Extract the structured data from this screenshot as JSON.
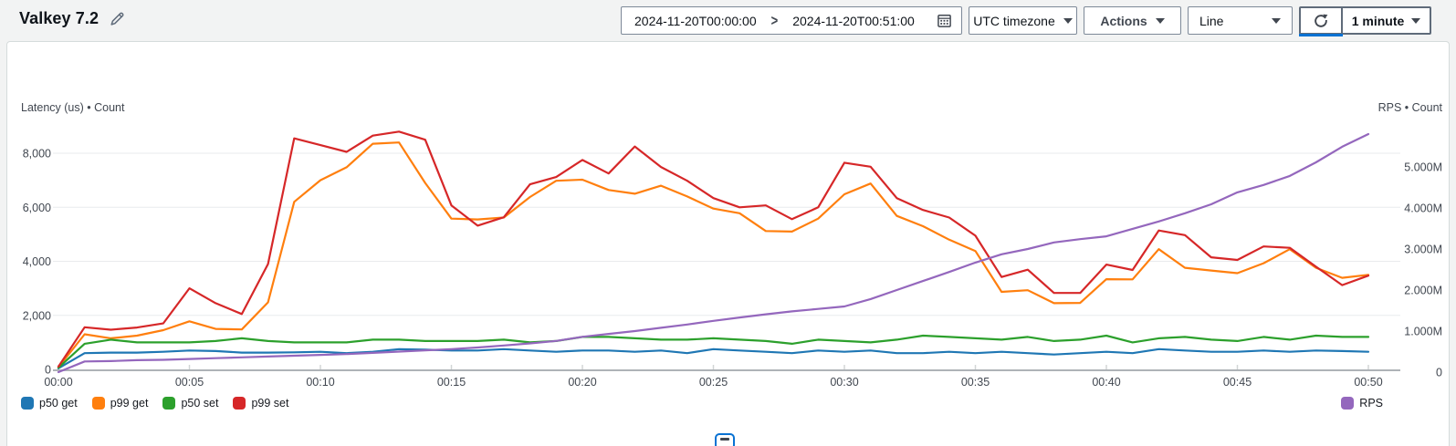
{
  "header": {
    "title": "Valkey 7.2",
    "date_range": {
      "start": "2024-11-20T00:00:00",
      "separator": ">",
      "end": "2024-11-20T00:51:00"
    },
    "timezone_dropdown_label": "UTC timezone",
    "actions_button_label": "Actions",
    "chart_type_selected": "Line",
    "refresh_interval_label": "1 minute"
  },
  "accent_color": "#0972d3",
  "chart_data": {
    "type": "line",
    "x_unit": "minutes",
    "x": [
      0,
      1,
      2,
      3,
      4,
      5,
      6,
      7,
      8,
      9,
      10,
      11,
      12,
      13,
      14,
      15,
      16,
      17,
      18,
      19,
      20,
      21,
      22,
      23,
      24,
      25,
      26,
      27,
      28,
      29,
      30,
      31,
      32,
      33,
      34,
      35,
      36,
      37,
      38,
      39,
      40,
      41,
      42,
      43,
      44,
      45,
      46,
      47,
      48,
      49,
      50
    ],
    "x_tick_labels": [
      "00:00",
      "00:05",
      "00:10",
      "00:15",
      "00:20",
      "00:25",
      "00:30",
      "00:35",
      "00:40",
      "00:45",
      "00:50"
    ],
    "left_axis": {
      "label": "Latency (us) • Count",
      "range": [
        0,
        9200
      ],
      "ticks": [
        0,
        2000,
        4000,
        6000,
        8000
      ],
      "tick_labels": [
        "0",
        "2,000",
        "4,000",
        "6,000",
        "8,000"
      ]
    },
    "right_axis": {
      "label": "RPS • Count",
      "range": [
        0,
        6.1
      ],
      "ticks": [
        0,
        1,
        2,
        3,
        4,
        5
      ],
      "tick_labels": [
        "0",
        "1.000M",
        "2.000M",
        "3.000M",
        "4.000M",
        "5.000M"
      ]
    },
    "grid": "horizontal-only",
    "legend_left": [
      "p50 get",
      "p99 get",
      "p50 set",
      "p99 set"
    ],
    "legend_right": [
      "RPS"
    ],
    "series": [
      {
        "name": "p50 get",
        "color": "#1f77b4",
        "axis": "left",
        "values": [
          40,
          600,
          620,
          620,
          650,
          700,
          680,
          620,
          620,
          630,
          650,
          600,
          650,
          750,
          730,
          700,
          700,
          750,
          700,
          650,
          700,
          700,
          650,
          700,
          600,
          750,
          700,
          650,
          600,
          700,
          650,
          700,
          600,
          600,
          650,
          600,
          650,
          600,
          550,
          600,
          650,
          600,
          750,
          700,
          650,
          650,
          700,
          650,
          700,
          680,
          650
        ]
      },
      {
        "name": "p99 get",
        "color": "#ff7f0e",
        "axis": "left",
        "values": [
          80,
          1300,
          1150,
          1250,
          1450,
          1780,
          1500,
          1480,
          2480,
          6200,
          7000,
          7480,
          8350,
          8400,
          6900,
          5580,
          5550,
          5620,
          6380,
          6980,
          7020,
          6640,
          6500,
          6800,
          6400,
          5950,
          5780,
          5120,
          5100,
          5580,
          6480,
          6880,
          5680,
          5300,
          4800,
          4380,
          2870,
          2930,
          2450,
          2460,
          3340,
          3330,
          4450,
          3760,
          3660,
          3560,
          3930,
          4450,
          3760,
          3390,
          3500
        ]
      },
      {
        "name": "p50 set",
        "color": "#2ca02c",
        "axis": "left",
        "values": [
          60,
          950,
          1100,
          1000,
          1000,
          1000,
          1050,
          1150,
          1050,
          1000,
          1000,
          1000,
          1100,
          1100,
          1050,
          1050,
          1050,
          1100,
          1000,
          1050,
          1200,
          1200,
          1150,
          1100,
          1100,
          1150,
          1100,
          1050,
          950,
          1100,
          1050,
          1000,
          1100,
          1250,
          1200,
          1150,
          1100,
          1200,
          1050,
          1100,
          1250,
          1000,
          1150,
          1200,
          1100,
          1050,
          1200,
          1100,
          1250,
          1200,
          1200
        ]
      },
      {
        "name": "p99 set",
        "color": "#d62728",
        "axis": "left",
        "values": [
          100,
          1560,
          1470,
          1550,
          1700,
          3000,
          2450,
          2050,
          3900,
          8550,
          8300,
          8050,
          8650,
          8800,
          8500,
          6070,
          5320,
          5630,
          6850,
          7120,
          7750,
          7250,
          8250,
          7490,
          6980,
          6340,
          6000,
          6070,
          5560,
          6000,
          7650,
          7500,
          6340,
          5900,
          5620,
          4950,
          3420,
          3690,
          2830,
          2830,
          3880,
          3680,
          5140,
          4970,
          4150,
          4050,
          4550,
          4500,
          3800,
          3120,
          3470
        ]
      },
      {
        "name": "RPS",
        "color": "#9467bd",
        "axis": "right",
        "values": [
          0,
          0.26,
          0.27,
          0.29,
          0.3,
          0.32,
          0.34,
          0.36,
          0.38,
          0.4,
          0.42,
          0.44,
          0.47,
          0.5,
          0.53,
          0.56,
          0.6,
          0.65,
          0.7,
          0.76,
          0.86,
          0.93,
          1.0,
          1.08,
          1.16,
          1.25,
          1.33,
          1.41,
          1.48,
          1.54,
          1.6,
          1.78,
          2.0,
          2.22,
          2.44,
          2.67,
          2.87,
          3.0,
          3.16,
          3.24,
          3.31,
          3.49,
          3.67,
          3.87,
          4.09,
          4.38,
          4.56,
          4.78,
          5.11,
          5.49,
          5.8
        ]
      }
    ]
  }
}
